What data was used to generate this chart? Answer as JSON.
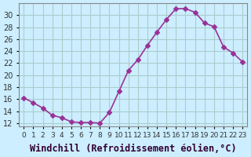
{
  "x": [
    0,
    1,
    2,
    3,
    4,
    5,
    6,
    7,
    8,
    9,
    10,
    11,
    12,
    13,
    14,
    15,
    16,
    17,
    18,
    19,
    20,
    21,
    22,
    23
  ],
  "y": [
    16.2,
    15.4,
    14.5,
    13.3,
    12.9,
    12.2,
    12.1,
    12.1,
    12.0,
    13.8,
    17.3,
    20.8,
    22.6,
    25.0,
    27.2,
    29.3,
    31.1,
    31.1,
    30.5,
    28.7,
    28.1,
    24.7,
    23.7,
    22.2
  ],
  "line_color": "#993399",
  "marker": "D",
  "marker_size": 3,
  "bg_color": "#cceeff",
  "grid_color": "#aacccc",
  "xlabel": "Windchill (Refroidissement éolien,°C)",
  "xlabel_fontsize": 8.5,
  "ylabel_ticks": [
    12,
    14,
    16,
    18,
    20,
    22,
    24,
    26,
    28,
    30
  ],
  "ylim": [
    11.5,
    32
  ],
  "xlim": [
    -0.5,
    23.5
  ],
  "xtick_labels": [
    "0",
    "1",
    "2",
    "3",
    "4",
    "5",
    "6",
    "7",
    "8",
    "9",
    "10",
    "11",
    "12",
    "13",
    "14",
    "15",
    "16",
    "17",
    "18",
    "19",
    "20",
    "21",
    "22",
    "23"
  ],
  "tick_fontsize": 7,
  "line_width": 1.2
}
